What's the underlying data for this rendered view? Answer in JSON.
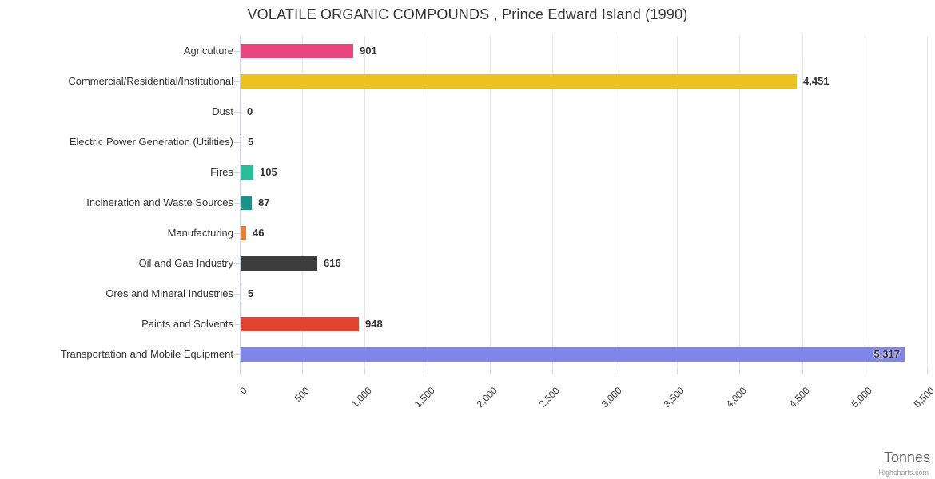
{
  "chart_data": {
    "type": "bar",
    "title": "VOLATILE ORGANIC COMPOUNDS , Prince Edward Island (1990)",
    "xlabel": "Tonnes",
    "ylabel": "",
    "xlim": [
      0,
      5500
    ],
    "grid": true,
    "legend": "none",
    "credit": "Highcharts.com",
    "x_tick_labels": [
      "0",
      "500",
      "1,000",
      "1,500",
      "2,000",
      "2,500",
      "3,000",
      "3,500",
      "4,000",
      "4,500",
      "5,000",
      "5,500"
    ],
    "x_tick_values": [
      0,
      500,
      1000,
      1500,
      2000,
      2500,
      3000,
      3500,
      4000,
      4500,
      5000,
      5500
    ],
    "categories": [
      "Agriculture",
      "Commercial/Residential/Institutional",
      "Dust",
      "Electric Power Generation (Utilities)",
      "Fires",
      "Incineration and Waste Sources",
      "Manufacturing",
      "Oil and Gas Industry",
      "Ores and Mineral Industries",
      "Paints and Solvents",
      "Transportation and Mobile Equipment"
    ],
    "values": [
      901,
      4451,
      0,
      5,
      105,
      87,
      46,
      616,
      5,
      948,
      5317
    ],
    "value_labels": [
      "901",
      "4,451",
      "0",
      "5",
      "105",
      "87",
      "46",
      "616",
      "5",
      "948",
      "5,317"
    ],
    "colors": [
      "#e8477d",
      "#edc220",
      "#9aa0a6",
      "#9aa0a6",
      "#29bd9c",
      "#1b9188",
      "#ed7d31",
      "#3d3d3d",
      "#9aa0a6",
      "#e2442f",
      "#8085e9"
    ],
    "label_inside": [
      false,
      false,
      false,
      false,
      false,
      false,
      false,
      false,
      false,
      false,
      true
    ]
  }
}
